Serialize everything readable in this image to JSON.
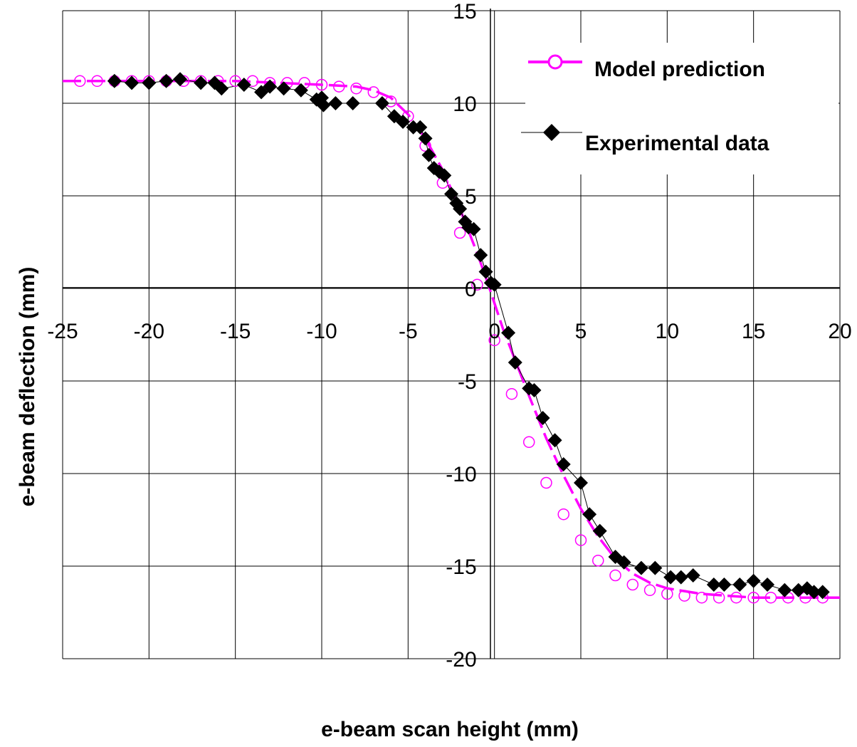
{
  "chart_data": {
    "type": "line",
    "xlabel": "e-beam scan height (mm)",
    "ylabel": "e-beam deflection (mm)",
    "xlim": [
      -25,
      20
    ],
    "ylim": [
      -20,
      15
    ],
    "x_ticks": [
      -25,
      -20,
      -15,
      -10,
      -5,
      0,
      5,
      10,
      15,
      20
    ],
    "y_ticks": [
      -20,
      -15,
      -10,
      -5,
      0,
      5,
      10,
      15
    ],
    "x_tick_labels": [
      "-25",
      "-20",
      "-15",
      "-10",
      "-5",
      "0",
      "5",
      "10",
      "15",
      "20"
    ],
    "y_tick_labels": [
      "-20",
      "-15",
      "-10",
      "-5",
      "0",
      "5",
      "10",
      "15"
    ],
    "grid": true,
    "legend_position": "top-right",
    "series": [
      {
        "name": "Model prediction",
        "color": "#FF00FF",
        "line": "dashed",
        "marker": "open-circle",
        "line_x": [
          -25,
          -20,
          -15,
          -10,
          -8,
          -7,
          -6,
          -5,
          -4,
          -3,
          -2,
          -1.5,
          -1,
          -0.5,
          0,
          0.5,
          1,
          2,
          3,
          4,
          5,
          6,
          7,
          8,
          9,
          10,
          12,
          15,
          20
        ],
        "line_y": [
          11.2,
          11.2,
          11.2,
          11.0,
          10.9,
          10.7,
          10.3,
          9.4,
          8.1,
          6.4,
          4.3,
          3.1,
          1.9,
          0.6,
          -0.8,
          -2.2,
          -3.4,
          -5.8,
          -8.1,
          -10.1,
          -11.9,
          -13.4,
          -14.6,
          -15.4,
          -15.9,
          -16.2,
          -16.5,
          -16.7,
          -16.7
        ],
        "x": [
          -24,
          -23,
          -22,
          -21,
          -20,
          -19,
          -18,
          -17,
          -16,
          -15,
          -14,
          -13,
          -12,
          -11,
          -10,
          -9,
          -8,
          -7,
          -6,
          -5,
          -4,
          -3,
          -2,
          -1,
          0,
          1,
          2,
          3,
          4,
          5,
          6,
          7,
          8,
          9,
          10,
          11,
          12,
          13,
          14,
          15,
          16,
          17,
          18,
          19
        ],
        "y": [
          11.2,
          11.2,
          11.2,
          11.2,
          11.2,
          11.2,
          11.2,
          11.2,
          11.2,
          11.2,
          11.2,
          11.1,
          11.1,
          11.1,
          11.0,
          10.9,
          10.8,
          10.6,
          10.1,
          9.3,
          7.7,
          5.7,
          3.0,
          0.2,
          -2.8,
          -5.7,
          -8.3,
          -10.5,
          -12.2,
          -13.6,
          -14.7,
          -15.5,
          -16.0,
          -16.3,
          -16.5,
          -16.6,
          -16.7,
          -16.7,
          -16.7,
          -16.7,
          -16.7,
          -16.7,
          -16.7,
          -16.7
        ]
      },
      {
        "name": "Experimental  data",
        "color": "#000000",
        "line": "thin-solid",
        "marker": "filled-diamond",
        "x": [
          -22,
          -21,
          -20,
          -19,
          -18.2,
          -17,
          -16.2,
          -15.8,
          -14.5,
          -13.5,
          -13,
          -12.2,
          -11.2,
          -10.3,
          -10,
          -9.9,
          -9.2,
          -8.2,
          -6.5,
          -5.8,
          -5.3,
          -4.7,
          -4.3,
          -4,
          -3.8,
          -3.5,
          -3.2,
          -2.9,
          -2.5,
          -2.2,
          -2,
          -1.7,
          -1.5,
          -1.2,
          -0.8,
          -0.5,
          -0.2,
          0,
          0.8,
          1.2,
          2,
          2.3,
          2.8,
          3.5,
          4,
          5,
          5.5,
          6.1,
          7,
          7.5,
          8.5,
          9.3,
          10.2,
          10.8,
          11.5,
          12.7,
          13.3,
          14.2,
          15,
          15.8,
          16.8,
          17.6,
          18.1,
          18.5,
          19
        ],
        "y": [
          11.2,
          11.1,
          11.1,
          11.2,
          11.3,
          11.1,
          11.1,
          10.8,
          11.0,
          10.6,
          10.9,
          10.8,
          10.7,
          10.2,
          10.3,
          9.9,
          10.0,
          10.0,
          10.0,
          9.3,
          9.0,
          8.7,
          8.7,
          8.1,
          7.2,
          6.5,
          6.3,
          6.1,
          5.1,
          4.6,
          4.3,
          3.6,
          3.3,
          3.2,
          1.8,
          0.9,
          0.3,
          0.2,
          -2.4,
          -4.0,
          -5.4,
          -5.5,
          -7.0,
          -8.2,
          -9.5,
          -10.5,
          -12.2,
          -13.1,
          -14.5,
          -14.8,
          -15.1,
          -15.1,
          -15.6,
          -15.6,
          -15.5,
          -16.0,
          -16.0,
          -16.0,
          -15.8,
          -16.0,
          -16.3,
          -16.3,
          -16.2,
          -16.4,
          -16.4
        ]
      }
    ]
  }
}
